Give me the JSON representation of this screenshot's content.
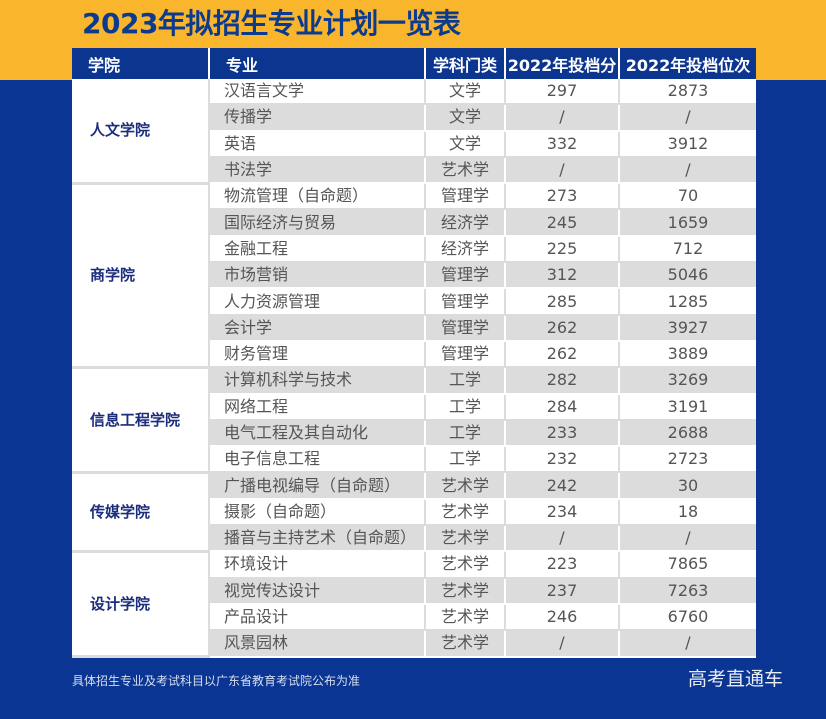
{
  "title": "2023年拟招生专业计划一览表",
  "table": {
    "headers": [
      "学院",
      "专业",
      "学科门类",
      "2022年投档分",
      "2022年投档位次"
    ],
    "groups": [
      {
        "college": "人文学院",
        "rows": [
          {
            "major": "汉语言文学",
            "category": "文学",
            "score": "297",
            "rank": "2873"
          },
          {
            "major": "传播学",
            "category": "文学",
            "score": "/",
            "rank": "/"
          },
          {
            "major": "英语",
            "category": "文学",
            "score": "332",
            "rank": "3912"
          },
          {
            "major": "书法学",
            "category": "艺术学",
            "score": "/",
            "rank": "/"
          }
        ]
      },
      {
        "college": "商学院",
        "rows": [
          {
            "major": "物流管理（自命题）",
            "category": "管理学",
            "score": "273",
            "rank": "70"
          },
          {
            "major": "国际经济与贸易",
            "category": "经济学",
            "score": "245",
            "rank": "1659"
          },
          {
            "major": "金融工程",
            "category": "经济学",
            "score": "225",
            "rank": "712"
          },
          {
            "major": "市场营销",
            "category": "管理学",
            "score": "312",
            "rank": "5046"
          },
          {
            "major": "人力资源管理",
            "category": "管理学",
            "score": "285",
            "rank": "1285"
          },
          {
            "major": "会计学",
            "category": "管理学",
            "score": "262",
            "rank": "3927"
          },
          {
            "major": "财务管理",
            "category": "管理学",
            "score": "262",
            "rank": "3889"
          }
        ]
      },
      {
        "college": "信息工程学院",
        "rows": [
          {
            "major": "计算机科学与技术",
            "category": "工学",
            "score": "282",
            "rank": "3269"
          },
          {
            "major": "网络工程",
            "category": "工学",
            "score": "284",
            "rank": "3191"
          },
          {
            "major": "电气工程及其自动化",
            "category": "工学",
            "score": "233",
            "rank": "2688"
          },
          {
            "major": "电子信息工程",
            "category": "工学",
            "score": "232",
            "rank": "2723"
          }
        ]
      },
      {
        "college": "传媒学院",
        "rows": [
          {
            "major": "广播电视编导（自命题）",
            "category": "艺术学",
            "score": "242",
            "rank": "30"
          },
          {
            "major": "摄影（自命题）",
            "category": "艺术学",
            "score": "234",
            "rank": "18"
          },
          {
            "major": "播音与主持艺术（自命题）",
            "category": "艺术学",
            "score": "/",
            "rank": "/"
          }
        ]
      },
      {
        "college": "设计学院",
        "rows": [
          {
            "major": "环境设计",
            "category": "艺术学",
            "score": "223",
            "rank": "7865"
          },
          {
            "major": "视觉传达设计",
            "category": "艺术学",
            "score": "237",
            "rank": "7263"
          },
          {
            "major": "产品设计",
            "category": "艺术学",
            "score": "246",
            "rank": "6760"
          },
          {
            "major": "风景园林",
            "category": "艺术学",
            "score": "/",
            "rank": "/"
          }
        ]
      }
    ]
  },
  "footnote": "具体招生专业及考试科目以广东省教育考试院公布为准",
  "watermark": "高考直通车",
  "colors": {
    "yellow": "#f9b52b",
    "blue_bg": "#0a3592",
    "header_bg": "#0c3590",
    "stripe_gray": "#dcdcdc",
    "college_text": "#1b2d7c"
  }
}
